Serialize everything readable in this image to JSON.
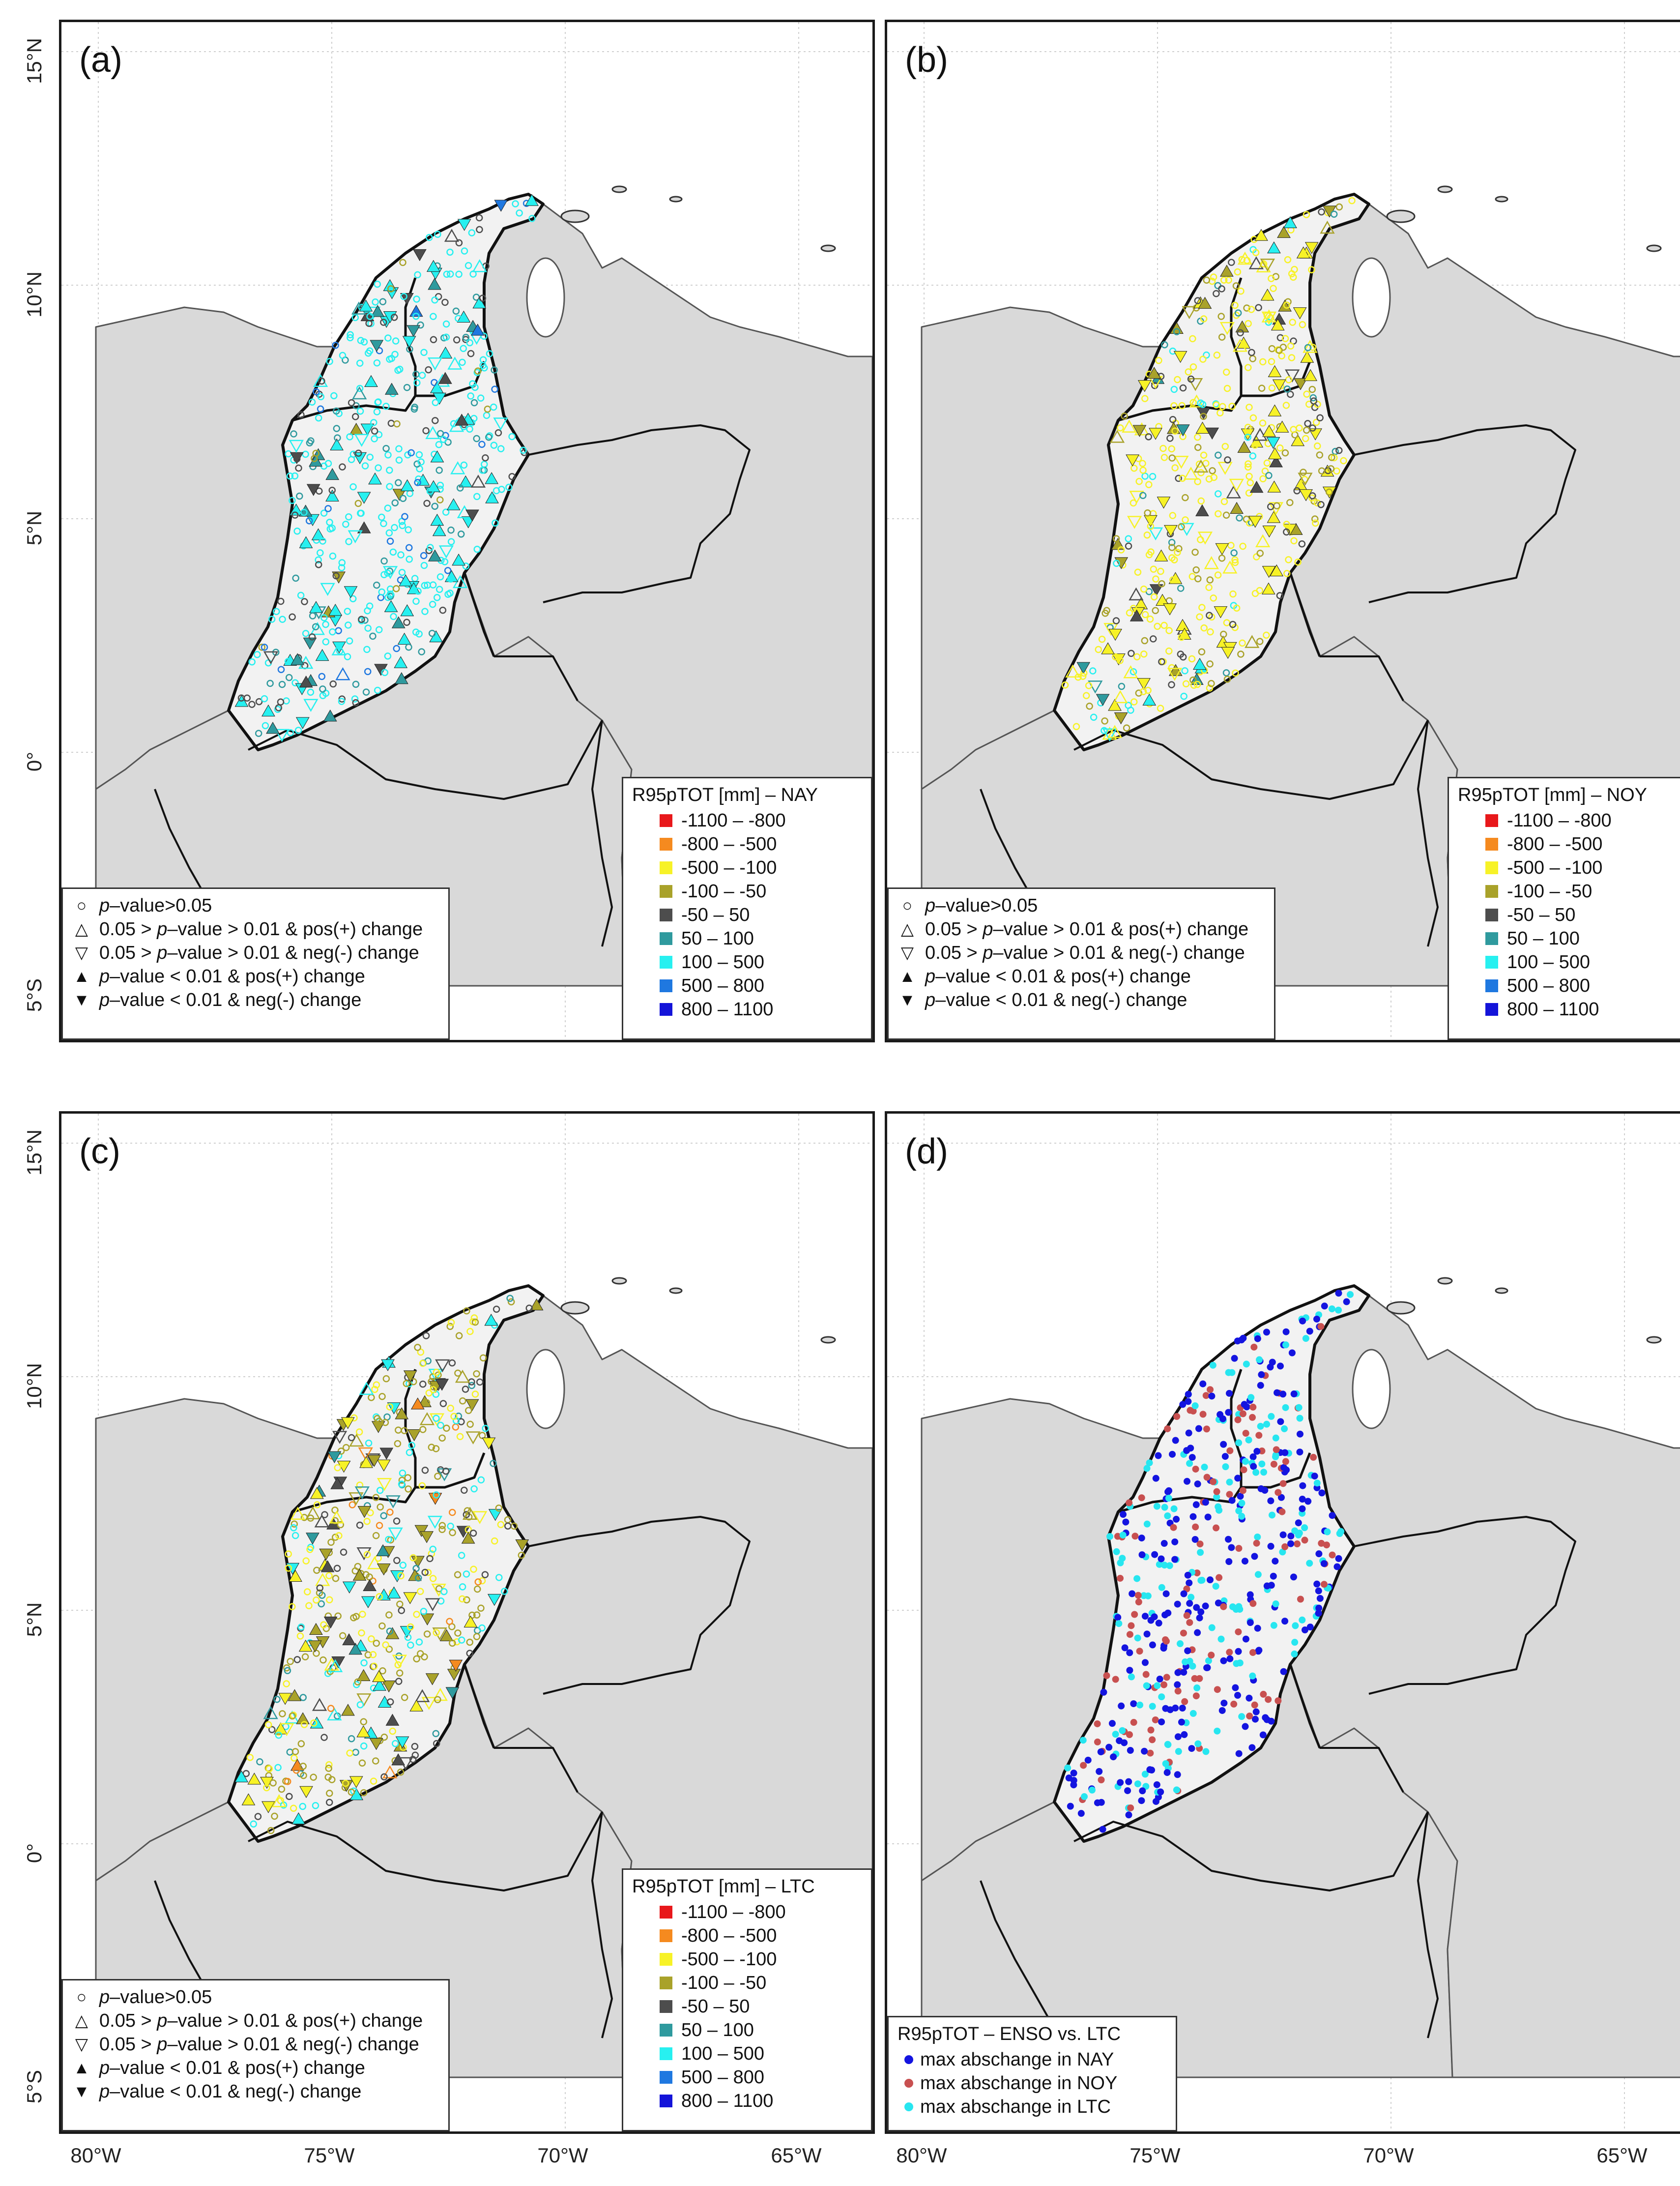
{
  "axes": {
    "lat_ticks": [
      "15°N",
      "10°N",
      "5°N",
      "0°",
      "5°S"
    ],
    "lon_ticks": [
      "80°W",
      "75°W",
      "70°W",
      "65°W"
    ]
  },
  "significance_legend": [
    {
      "symbol": "○",
      "pre": "",
      "key": "p",
      "post": "–value>0.05"
    },
    {
      "symbol": "△",
      "pre": "0.05 > ",
      "key": "p",
      "post": "–value > 0.01 & pos(+) change"
    },
    {
      "symbol": "▽",
      "pre": "0.05 > ",
      "key": "p",
      "post": "–value > 0.01 & neg(-) change"
    },
    {
      "symbol": "▲",
      "pre": "",
      "key": "p",
      "post": "–value < 0.01 & pos(+) change"
    },
    {
      "symbol": "▼",
      "pre": "",
      "key": "p",
      "post": "–value < 0.01 & neg(-) change"
    }
  ],
  "value_classes": [
    {
      "label": "-1100 – -800",
      "color": "#e8181b"
    },
    {
      "label": "-800 – -500",
      "color": "#f58a1f"
    },
    {
      "label": "-500 – -100",
      "color": "#f7f227"
    },
    {
      "label": "-100 – -50",
      "color": "#a9a22a"
    },
    {
      "label": "-50 – 50",
      "color": "#4d4d4d"
    },
    {
      "label": "50 – 100",
      "color": "#2f9a9e"
    },
    {
      "label": "100 – 500",
      "color": "#27f0f0"
    },
    {
      "label": "500 – 800",
      "color": "#1f78e0"
    },
    {
      "label": "800 – 1100",
      "color": "#1414d9"
    }
  ],
  "panels": [
    {
      "label": "(a)",
      "legend_title": "R95pTOT [mm] – NAY",
      "dominant_class": "100 – 500"
    },
    {
      "label": "(b)",
      "legend_title": "R95pTOT [mm] – NOY",
      "dominant_class": "-500 – -100"
    },
    {
      "label": "(c)",
      "legend_title": "R95pTOT [mm] – LTC",
      "dominant_class": "-100 – -50"
    },
    {
      "label": "(d)",
      "legend_title": "R95pTOT – ENSO vs. LTC",
      "categories": [
        {
          "label": "max abschange in NAY",
          "color": "#1414e0"
        },
        {
          "label": "max abschange in NOY",
          "color": "#c85050"
        },
        {
          "label": "max abschange in LTC",
          "color": "#27e6f0"
        }
      ]
    }
  ],
  "colors": {
    "land": "#d9d9d9",
    "relief": "#f2f2f2",
    "ocean": "#ffffff",
    "border": "#111111"
  }
}
